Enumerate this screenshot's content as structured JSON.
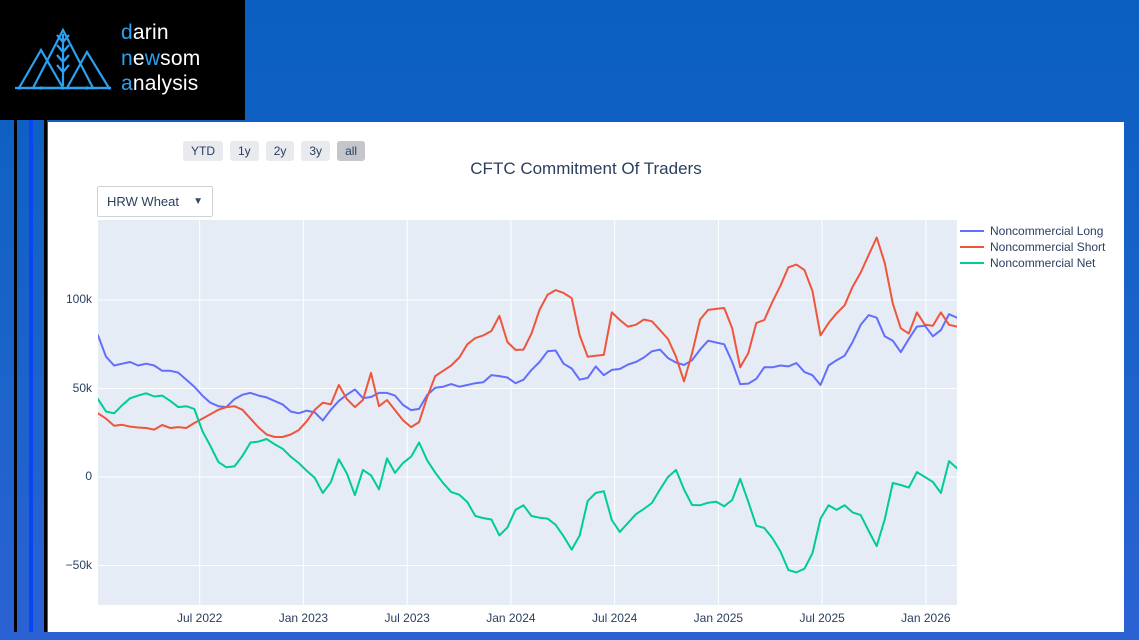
{
  "brand": {
    "l1_blue": "d",
    "l1_white": "arin",
    "l2_b1": "n",
    "l2_w1": "e",
    "l2_b2": "w",
    "l2_w2": "som",
    "l3_blue": "a",
    "l3_white": "nalysis",
    "logo_blue": "#2ba1f2"
  },
  "range_buttons": {
    "items": [
      {
        "label": "YTD"
      },
      {
        "label": "1y"
      },
      {
        "label": "2y"
      },
      {
        "label": "3y"
      },
      {
        "label": "all"
      }
    ],
    "active": "all"
  },
  "dropdown": {
    "value": "HRW Wheat",
    "arrow": "▼"
  },
  "chart_data": {
    "type": "line",
    "title": "CFTC Commitment Of Traders",
    "units": "contracts (values in thousands, k)",
    "x_range": [
      2022.01,
      2026.15
    ],
    "y_range": [
      -72.3,
      145.2
    ],
    "grid": true,
    "plot_bg": "#e5ecf6",
    "legend_position": "right",
    "x_ticks": [
      {
        "x": 2022.5,
        "label": "Jul 2022"
      },
      {
        "x": 2023.0,
        "label": "Jan 2023"
      },
      {
        "x": 2023.5,
        "label": "Jul 2023"
      },
      {
        "x": 2024.0,
        "label": "Jan 2024"
      },
      {
        "x": 2024.5,
        "label": "Jul 2024"
      },
      {
        "x": 2025.0,
        "label": "Jan 2025"
      },
      {
        "x": 2025.5,
        "label": "Jul 2025"
      },
      {
        "x": 2026.0,
        "label": "Jan 2026"
      }
    ],
    "y_ticks": [
      {
        "v": 100,
        "label": "100k"
      },
      {
        "v": 50,
        "label": "50k"
      },
      {
        "v": 0,
        "label": "0"
      },
      {
        "v": -50,
        "label": "−50k"
      }
    ],
    "series": [
      {
        "name": "Noncommercial Long",
        "color": "#636efa",
        "values": [
          80,
          68,
          63,
          64,
          65,
          63,
          64,
          63,
          60,
          60,
          59,
          55,
          51,
          46,
          42,
          40,
          39.5,
          44,
          46.5,
          47.5,
          46,
          45,
          43,
          41,
          37,
          36,
          37.5,
          36.5,
          32,
          38,
          43,
          46.5,
          49.5,
          44.6,
          45.2,
          47.5,
          47.5,
          46,
          40.7,
          37.8,
          38.5,
          46.3,
          50.4,
          51,
          52.5,
          51,
          52,
          53,
          53.5,
          57.6,
          57,
          56.2,
          53,
          55,
          60.5,
          65,
          71,
          71.5,
          64,
          61.3,
          55,
          56,
          62.5,
          57.5,
          60.5,
          61,
          63.5,
          65,
          67.5,
          71,
          72,
          67.2,
          64.7,
          63.3,
          66,
          72,
          77,
          76,
          75,
          65,
          52.5,
          52.8,
          55.5,
          62,
          62,
          63,
          62.5,
          64.4,
          59.3,
          57.5,
          52,
          63,
          66,
          68.5,
          76.3,
          86,
          91.5,
          90,
          79.5,
          77,
          70.5,
          78,
          85,
          85.5,
          79.5,
          83,
          92,
          90
        ]
      },
      {
        "name": "Noncommercial Short",
        "color": "#EF553B",
        "values": [
          36,
          33,
          29,
          29.5,
          28.5,
          28,
          27.7,
          26.8,
          29.4,
          27.7,
          28.2,
          27.7,
          30.5,
          33,
          35.5,
          38,
          39.5,
          40,
          38,
          33,
          28,
          24,
          22.6,
          22.6,
          24,
          26.5,
          31.5,
          38,
          42,
          41,
          52,
          44,
          39.5,
          43.5,
          58.8,
          40,
          43.5,
          37.8,
          32,
          28.2,
          31,
          45,
          57,
          60,
          63,
          67.5,
          75,
          78.5,
          80,
          82.5,
          91,
          76.3,
          71.8,
          72,
          81,
          94.4,
          103,
          105.6,
          104,
          101,
          80,
          68,
          68.5,
          69,
          93,
          88.7,
          85,
          86,
          89,
          88,
          83,
          78,
          68,
          54,
          70,
          89,
          94.4,
          95,
          95.5,
          84,
          62,
          70,
          87,
          88.7,
          99,
          108,
          118.5,
          120,
          116.9,
          105,
          80,
          87,
          92.5,
          97,
          107.5,
          115.5,
          125.5,
          135.3,
          121,
          98,
          84,
          81,
          93,
          86,
          85.5,
          93,
          86,
          85
        ]
      },
      {
        "name": "Noncommercial Net",
        "color": "#00cc96",
        "values": [
          44,
          37,
          36,
          40.5,
          44.5,
          46,
          47.3,
          45.5,
          46,
          43,
          39.5,
          40,
          38.5,
          26,
          17.5,
          8.5,
          5.5,
          6,
          12,
          19.5,
          20,
          21.5,
          18.5,
          16,
          11.5,
          7.9,
          3.5,
          -0.5,
          -9,
          -3,
          10,
          2,
          -10.2,
          4,
          1,
          -7,
          10.5,
          2.3,
          8,
          11.5,
          19.5,
          9.5,
          2.5,
          -3.5,
          -8.5,
          -10,
          -14.1,
          -22,
          -23.2,
          -24,
          -33,
          -28.5,
          -18.6,
          -16,
          -22,
          -23,
          -23.5,
          -27,
          -33.5,
          -41,
          -33,
          -13.5,
          -9,
          -8,
          -24.3,
          -31,
          -26,
          -21,
          -18,
          -14.7,
          -7,
          0,
          4,
          -7,
          -15.8,
          -16,
          -14.5,
          -14,
          -16.5,
          -13,
          -1,
          -14,
          -27.5,
          -28.8,
          -34.5,
          -42,
          -52.5,
          -53.9,
          -51.8,
          -42.9,
          -23.5,
          -16,
          -18.6,
          -16,
          -20,
          -21.5,
          -30.5,
          -39,
          -24,
          -3.4,
          -4.5,
          -6,
          2.8,
          0,
          -2.8,
          -9,
          9,
          5
        ]
      }
    ]
  }
}
